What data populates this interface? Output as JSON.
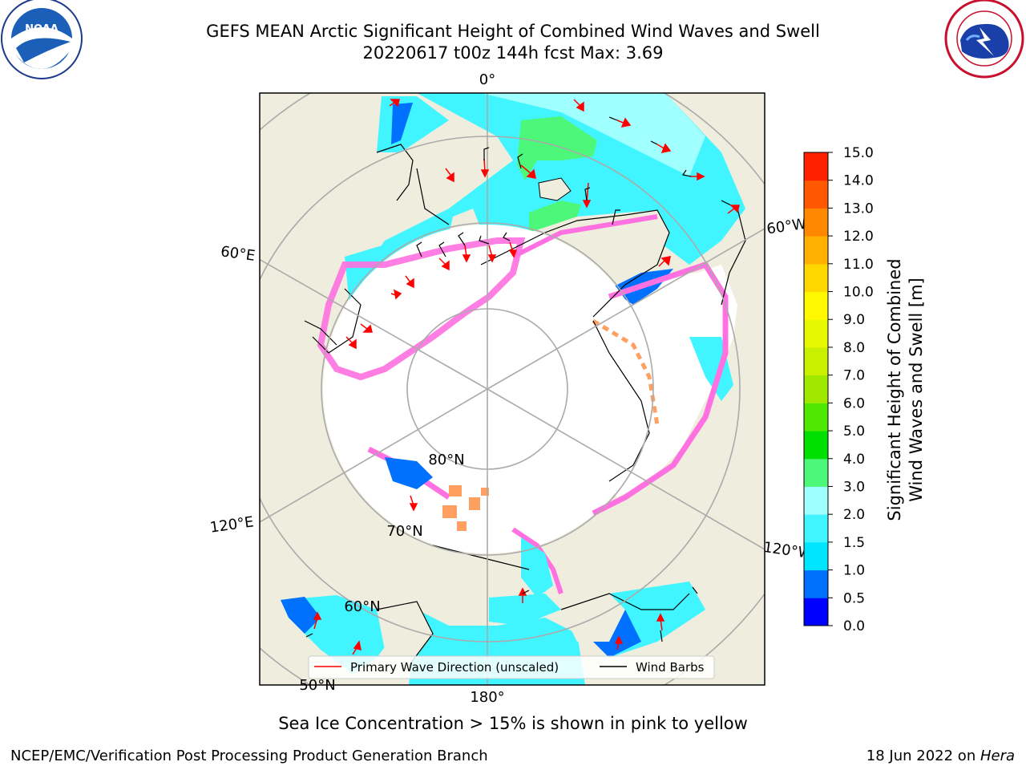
{
  "header": {
    "title_line1": "GEFS MEAN Arctic Significant Height of Combined Wind Waves and Swell",
    "title_line2": "20220617 t00z 144h fcst   Max: 3.69"
  },
  "logos": {
    "left": {
      "name": "NOAA",
      "ring_text": "NATIONAL OCEANIC AND ATMOSPHERIC ADMINISTRATION · U.S. DEPARTMENT OF COMMERCE"
    },
    "right": {
      "ring_text": "NATIONAL WEATHER SERVICE"
    }
  },
  "map": {
    "lon_labels": [
      "0°",
      "60°E",
      "60°W",
      "120°E",
      "120°W",
      "180°"
    ],
    "lat_labels": [
      "80°N",
      "70°N",
      "60°N",
      "50°N"
    ],
    "colors": {
      "land": "#efedde",
      "ice": "#ffffff",
      "graticule": "#aaaaaa",
      "wave_arrows": "#ff0000",
      "wind_barbs": "#000000"
    }
  },
  "legend": {
    "primary_wave": "Primary Wave Direction (unscaled)",
    "wind_barbs": "Wind Barbs"
  },
  "colorbar": {
    "title_line1": "Significant Height of Combined",
    "title_line2": "Wind Waves and Swell [m]",
    "ticks": [
      "0.0",
      "0.5",
      "1.0",
      "1.5",
      "2.0",
      "3.0",
      "4.0",
      "5.0",
      "6.0",
      "7.0",
      "8.0",
      "9.0",
      "10.0",
      "11.0",
      "12.0",
      "13.0",
      "14.0",
      "15.0"
    ],
    "colors": [
      "#0000ff",
      "#0070ff",
      "#00e5ff",
      "#40f5ff",
      "#a0ffff",
      "#4cf77a",
      "#00e000",
      "#50e800",
      "#a0e800",
      "#c8f000",
      "#e8f800",
      "#fff800",
      "#ffd800",
      "#ffb000",
      "#ff8800",
      "#ff5800",
      "#ff2000"
    ]
  },
  "caption": "Sea Ice Concentration > 15% is shown in pink to yellow",
  "footer": {
    "left": "NCEP/EMC/Verification Post Processing Product Generation Branch",
    "right_date": "18 Jun 2022 on ",
    "right_host": "Hera"
  }
}
